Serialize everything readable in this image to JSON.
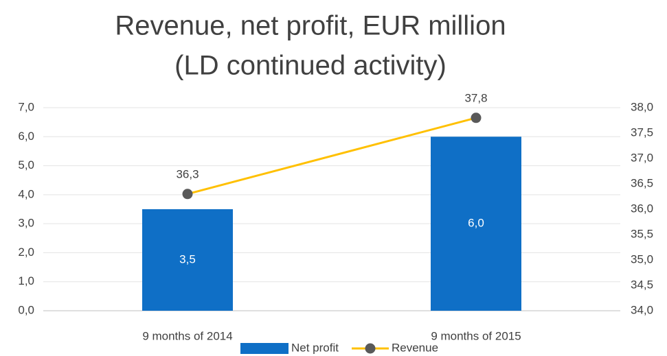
{
  "chart_data": {
    "type": "bar_line",
    "title": [
      "Revenue, net profit, EUR million",
      "(LD continued activity)"
    ],
    "categories": [
      "9 months of 2014",
      "9 months of 2015"
    ],
    "series": [
      {
        "name": "Net profit",
        "color": "#0f6fc6",
        "type": "bar",
        "values": [
          3.5,
          6.0
        ],
        "value_labels": [
          "3,5",
          "6,0"
        ]
      },
      {
        "name": "Revenue",
        "color": "#ffc000",
        "marker_color": "#595959",
        "type": "line",
        "axis": "y2",
        "values": [
          36.3,
          37.8
        ],
        "value_labels": [
          "36,3",
          "37,8"
        ]
      }
    ],
    "ylim": [
      0,
      7
    ],
    "yticks": [
      {
        "value": 0,
        "label": "0,0"
      },
      {
        "value": 1,
        "label": "1,0"
      },
      {
        "value": 2,
        "label": "2,0"
      },
      {
        "value": 3,
        "label": "3,0"
      },
      {
        "value": 4,
        "label": "4,0"
      },
      {
        "value": 5,
        "label": "5,0"
      },
      {
        "value": 6,
        "label": "6,0"
      },
      {
        "value": 7,
        "label": "7,0"
      }
    ],
    "y2lim": [
      34,
      38
    ],
    "y2ticks": [
      {
        "value": 34,
        "label": "34,0"
      },
      {
        "value": 34.5,
        "label": "34,5"
      },
      {
        "value": 35,
        "label": "35,0"
      },
      {
        "value": 35.5,
        "label": "35,5"
      },
      {
        "value": 36,
        "label": "36,0"
      },
      {
        "value": 36.5,
        "label": "36,5"
      },
      {
        "value": 37,
        "label": "37,0"
      },
      {
        "value": 37.5,
        "label": "37,5"
      },
      {
        "value": 38,
        "label": "38,0"
      }
    ],
    "grid": true,
    "legend": "bottom"
  }
}
